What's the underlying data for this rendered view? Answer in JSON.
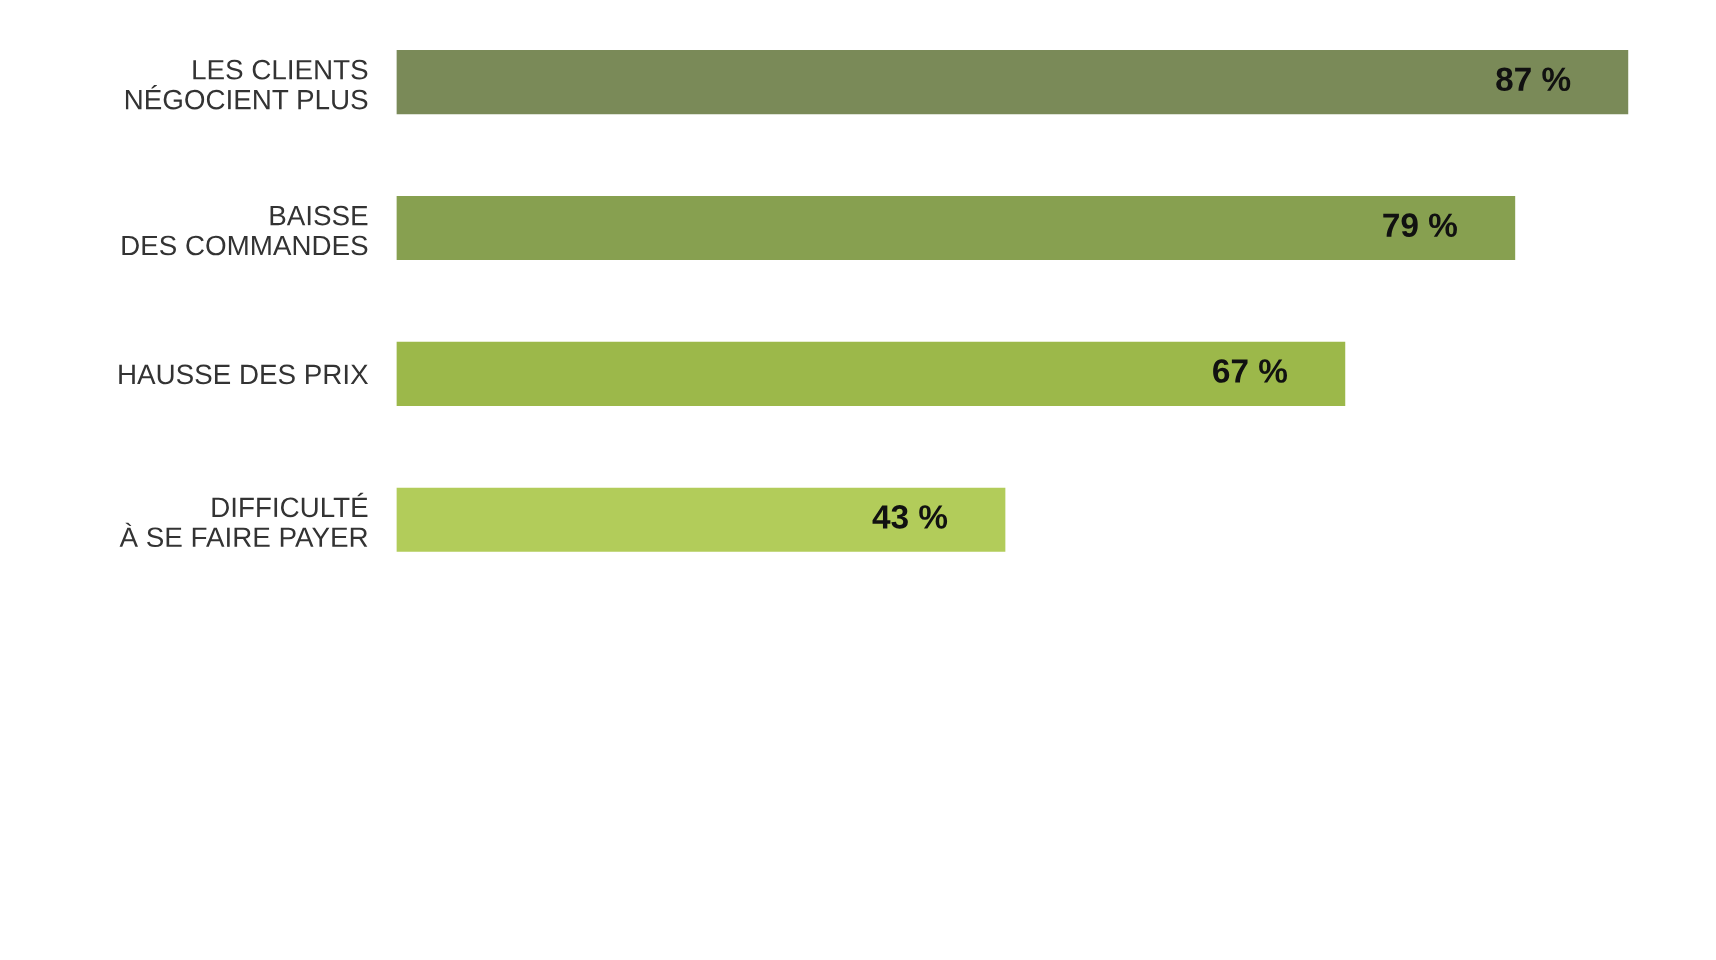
{
  "chart_data": {
    "type": "bar",
    "orientation": "horizontal",
    "categories": [
      "LES CLIENTS\nNÉGOCIENT PLUS",
      "BAISSE\nDES COMMANDES",
      "HAUSSE DES PRIX",
      "DIFFICULTÉ\nÀ SE FAIRE PAYER"
    ],
    "values": [
      87,
      79,
      67,
      43
    ],
    "value_labels": [
      "87 %",
      "79 %",
      "67 %",
      "43 %"
    ],
    "colors": [
      "#7a8a58",
      "#87a050",
      "#9cb84a",
      "#b2cc5a"
    ]
  }
}
